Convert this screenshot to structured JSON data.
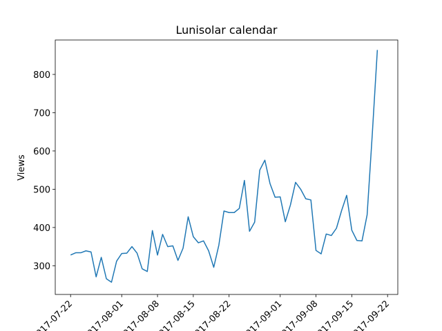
{
  "chart_data": {
    "type": "line",
    "title": "Lunisolar calendar",
    "xlabel": "",
    "ylabel": "Views",
    "x_tick_labels": [
      "2017-07-22",
      "2017-08-01",
      "2017-08-08",
      "2017-08-15",
      "2017-08-22",
      "2017-09-01",
      "2017-09-08",
      "2017-09-15",
      "2017-09-22"
    ],
    "y_ticks": [
      300,
      400,
      500,
      600,
      700,
      800
    ],
    "xlim": [
      "2017-07-19",
      "2017-09-24"
    ],
    "ylim": [
      225,
      890
    ],
    "grid": false,
    "line_color": "#1f77b4",
    "series": [
      {
        "x": [
          "2017-07-22",
          "2017-07-23",
          "2017-07-24",
          "2017-07-25",
          "2017-07-26",
          "2017-07-27",
          "2017-07-28",
          "2017-07-29",
          "2017-07-30",
          "2017-07-31",
          "2017-08-01",
          "2017-08-02",
          "2017-08-03",
          "2017-08-04",
          "2017-08-05",
          "2017-08-06",
          "2017-08-07",
          "2017-08-08",
          "2017-08-09",
          "2017-08-10",
          "2017-08-11",
          "2017-08-12",
          "2017-08-13",
          "2017-08-14",
          "2017-08-15",
          "2017-08-16",
          "2017-08-17",
          "2017-08-18",
          "2017-08-19",
          "2017-08-20",
          "2017-08-21",
          "2017-08-22",
          "2017-08-23",
          "2017-08-24",
          "2017-08-25",
          "2017-08-26",
          "2017-08-27",
          "2017-08-28",
          "2017-08-29",
          "2017-08-30",
          "2017-08-31",
          "2017-09-01",
          "2017-09-02",
          "2017-09-03",
          "2017-09-04",
          "2017-09-05",
          "2017-09-06",
          "2017-09-07",
          "2017-09-08",
          "2017-09-09",
          "2017-09-10",
          "2017-09-11",
          "2017-09-12",
          "2017-09-13",
          "2017-09-14",
          "2017-09-15",
          "2017-09-16",
          "2017-09-17",
          "2017-09-18",
          "2017-09-19",
          "2017-09-20"
        ],
        "values": [
          328,
          334,
          334,
          339,
          336,
          271,
          322,
          266,
          257,
          312,
          332,
          333,
          350,
          333,
          292,
          285,
          392,
          328,
          382,
          350,
          352,
          314,
          346,
          428,
          376,
          360,
          365,
          339,
          296,
          354,
          443,
          439,
          439,
          450,
          523,
          390,
          414,
          550,
          576,
          515,
          479,
          480,
          415,
          459,
          518,
          500,
          475,
          472,
          340,
          331,
          383,
          379,
          398,
          444,
          484,
          393,
          366,
          365,
          433,
          642,
          864
        ]
      }
    ]
  }
}
